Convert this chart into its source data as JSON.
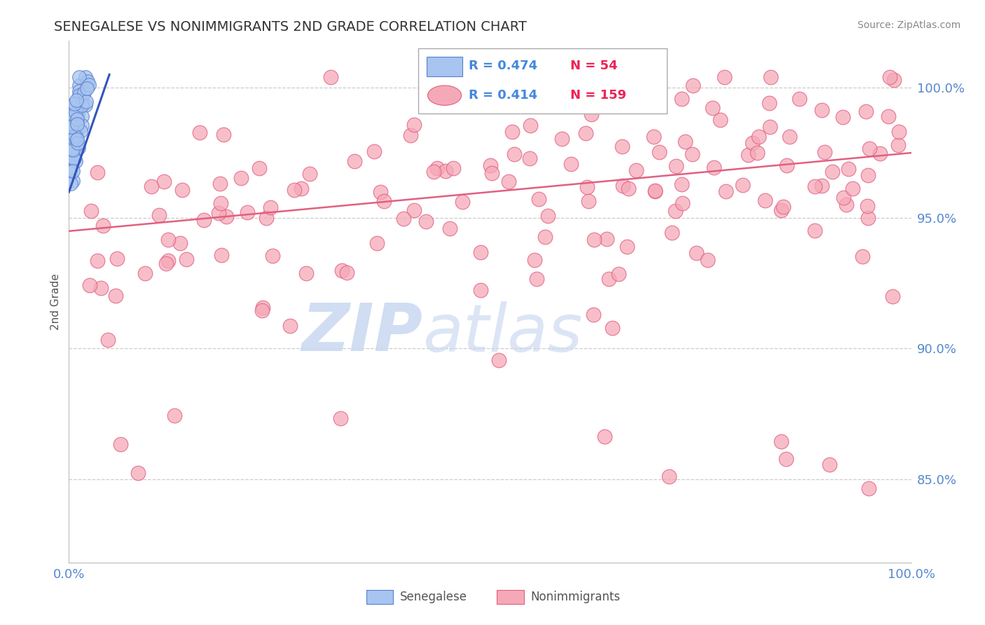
{
  "title": "SENEGALESE VS NONIMMIGRANTS 2ND GRADE CORRELATION CHART",
  "source_text": "Source: ZipAtlas.com",
  "ylabel": "2nd Grade",
  "ytick_values": [
    0.85,
    0.9,
    0.95,
    1.0
  ],
  "xlim": [
    0.0,
    1.0
  ],
  "ylim": [
    0.818,
    1.018
  ],
  "blue_R": 0.474,
  "blue_N": 54,
  "pink_R": 0.414,
  "pink_N": 159,
  "blue_color": "#a8c4f0",
  "pink_color": "#f5a8b8",
  "blue_edge_color": "#5580cc",
  "pink_edge_color": "#e06080",
  "blue_line_color": "#3355bb",
  "pink_line_color": "#e06080",
  "grid_color": "#cccccc",
  "title_color": "#333333",
  "axis_label_color": "#555555",
  "tick_label_color": "#5588cc",
  "source_color": "#888888",
  "legend_R_color": "#4488dd",
  "legend_N_color": "#ee2255",
  "pink_line_start_y": 0.945,
  "pink_line_end_y": 0.975,
  "blue_line_start_y": 0.96,
  "blue_line_end_y": 1.005,
  "blue_line_end_x": 0.048
}
